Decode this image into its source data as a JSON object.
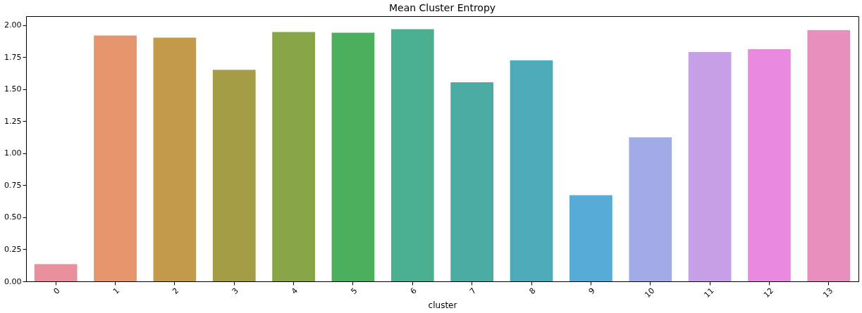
{
  "chart_data": {
    "type": "bar",
    "title": "Mean Cluster Entropy",
    "xlabel": "cluster",
    "categories": [
      "0",
      "1",
      "2",
      "3",
      "4",
      "5",
      "6",
      "7",
      "8",
      "9",
      "10",
      "11",
      "12",
      "13"
    ],
    "values": [
      0.134,
      1.919,
      1.903,
      1.651,
      1.946,
      1.941,
      1.968,
      1.554,
      1.726,
      0.672,
      1.124,
      1.79,
      1.812,
      1.962
    ],
    "colors": [
      "#e8909c",
      "#e5956b",
      "#c29a4a",
      "#a49d45",
      "#88a648",
      "#4caf5e",
      "#4aaf8e",
      "#4aaba3",
      "#4daab8",
      "#56acd6",
      "#a2abe8",
      "#c69fe6",
      "#e98ae0",
      "#e890bd"
    ],
    "ylim": [
      0,
      2.07
    ],
    "yticks": [
      {
        "value": 0,
        "label": "0.00"
      },
      {
        "value": 0.25,
        "label": "0.25"
      },
      {
        "value": 0.5,
        "label": "0.50"
      },
      {
        "value": 0.75,
        "label": "0.75"
      },
      {
        "value": 1,
        "label": "1.00"
      },
      {
        "value": 1.25,
        "label": "1.25"
      },
      {
        "value": 1.5,
        "label": "1.50"
      },
      {
        "value": 1.75,
        "label": "1.75"
      },
      {
        "value": 2,
        "label": "2.00"
      }
    ],
    "grid": false,
    "legend": false
  }
}
